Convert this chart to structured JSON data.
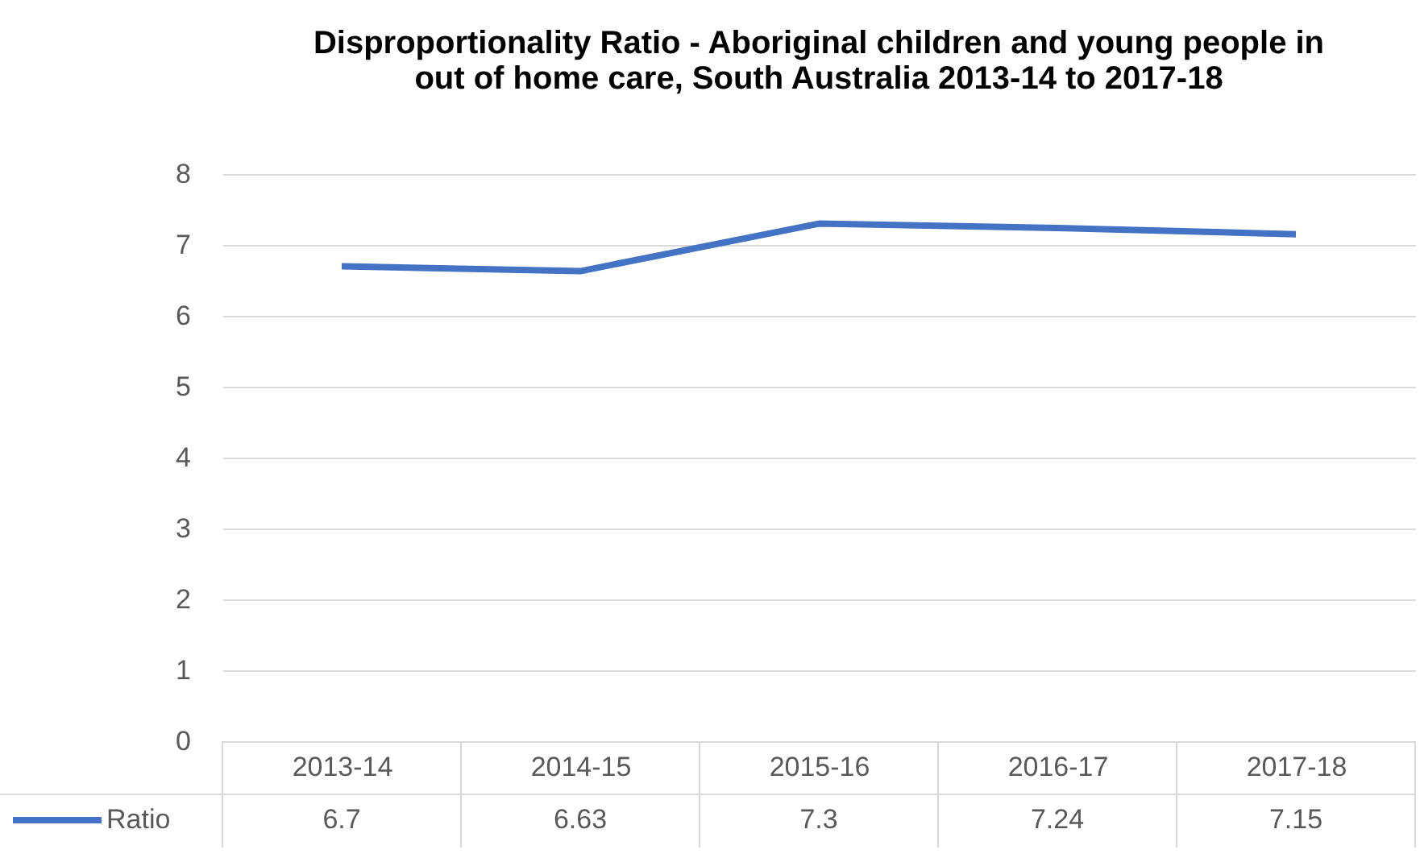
{
  "chart_data": {
    "type": "line",
    "title": "Disproportionality Ratio - Aboriginal children and young people in out of home care, South Australia 2013-14 to 2017-18",
    "categories": [
      "2013-14",
      "2014-15",
      "2015-16",
      "2016-17",
      "2017-18"
    ],
    "series": [
      {
        "name": "Ratio",
        "color": "#4472c4",
        "values": [
          6.7,
          6.63,
          7.3,
          7.24,
          7.15
        ]
      }
    ],
    "ylim": [
      0,
      8
    ],
    "yticks": [
      0,
      1,
      2,
      3,
      4,
      5,
      6,
      7,
      8
    ],
    "grid": "y",
    "data_labels": true,
    "legend": "bottom left",
    "marker": "none",
    "line_style": "solid"
  }
}
